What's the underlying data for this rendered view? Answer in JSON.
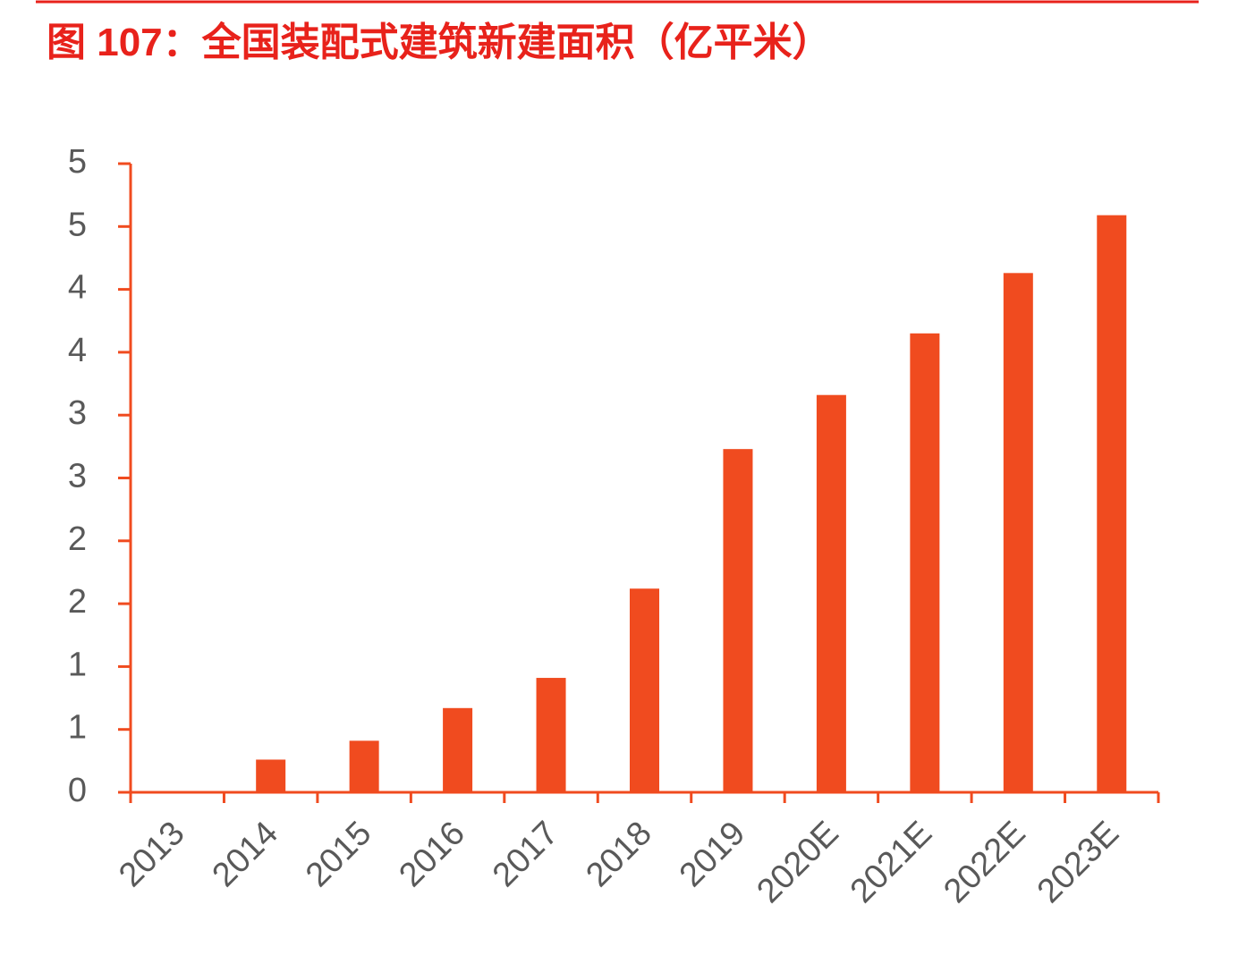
{
  "chart_data": {
    "type": "bar",
    "title": "图 107：全国装配式建筑新建面积（亿平米）",
    "categories": [
      "2013",
      "2014",
      "2015",
      "2016",
      "2017",
      "2018",
      "2019",
      "2020E",
      "2021E",
      "2022E",
      "2023E"
    ],
    "values": [
      0.01,
      0.26,
      0.41,
      0.67,
      0.91,
      1.62,
      2.73,
      3.16,
      3.65,
      4.13,
      4.59
    ],
    "color": "#f04b1f",
    "ylim": [
      0,
      5
    ],
    "yticks": [
      0,
      {
        "value": 0.5,
        "label": "1"
      },
      1,
      {
        "value": 1.5,
        "label": "2"
      },
      2,
      {
        "value": 2.5,
        "label": "3"
      },
      3,
      {
        "value": 3.5,
        "label": "4"
      },
      4,
      {
        "value": 4.5,
        "label": "5"
      },
      5
    ],
    "grid": false
  }
}
